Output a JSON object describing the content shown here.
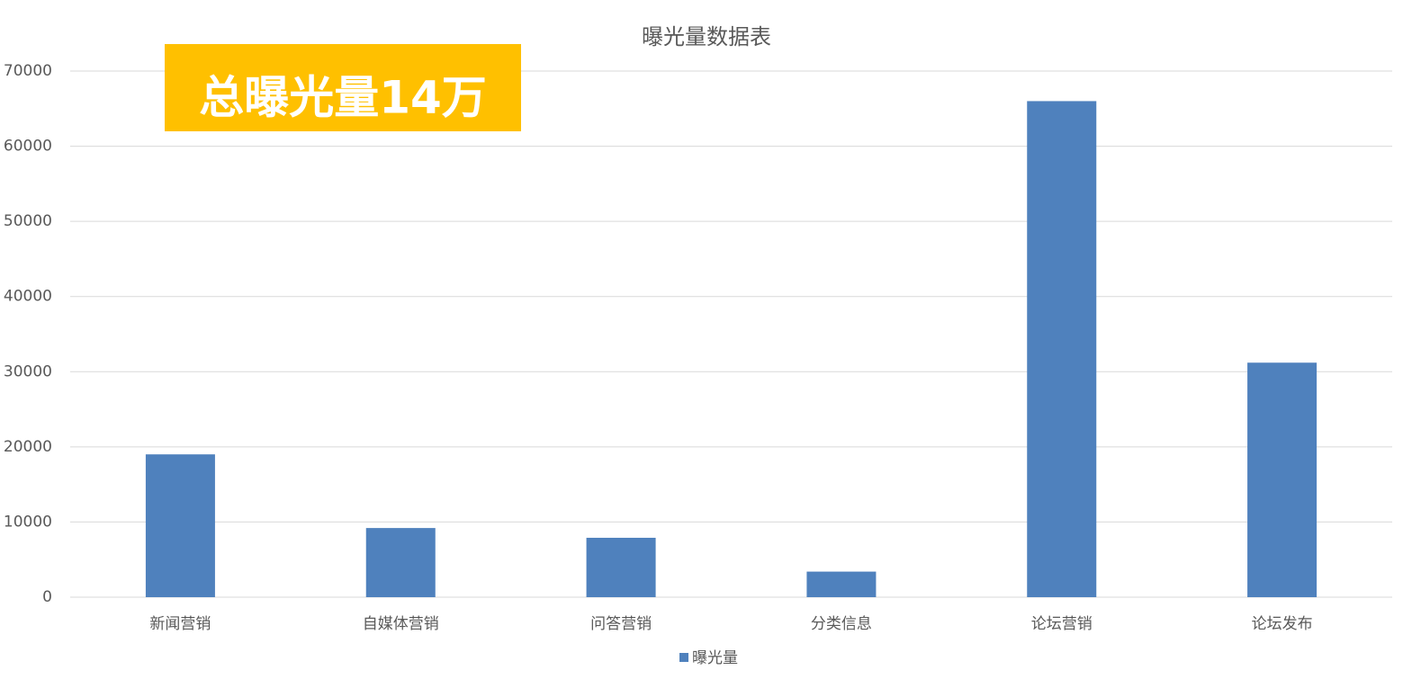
{
  "chart_data": {
    "type": "bar",
    "title": "曝光量数据表",
    "annotation": "总曝光量14万",
    "categories": [
      "新闻营销",
      "自媒体营销",
      "问答营销",
      "分类信息",
      "论坛营销",
      "论坛发布"
    ],
    "series": [
      {
        "name": "曝光量",
        "color": "#4f81bd",
        "values": [
          19000,
          9200,
          7900,
          3400,
          66000,
          31200
        ]
      }
    ],
    "ylim": [
      0,
      70000
    ],
    "yticks": [
      0,
      10000,
      20000,
      30000,
      40000,
      50000,
      60000,
      70000
    ],
    "grid": true,
    "legend": "bottom"
  }
}
